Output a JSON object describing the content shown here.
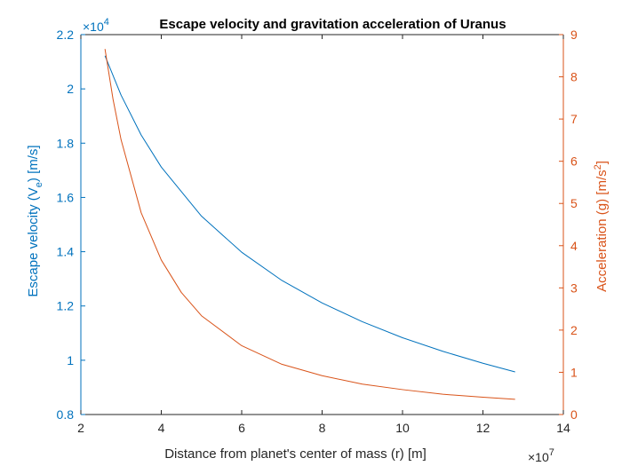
{
  "chart_data": {
    "type": "line",
    "title": "Escape velocity and gravitation acceleration of Uranus",
    "xlabel": "Distance from planet's center of mass (r) [m]",
    "x_multiplier": "×10",
    "x_multiplier_exp": "7",
    "xlim": [
      20000000.0,
      140000000.0
    ],
    "xticks": [
      20000000.0,
      40000000.0,
      60000000.0,
      80000000.0,
      100000000.0,
      120000000.0,
      140000000.0
    ],
    "xtick_labels": [
      "2",
      "4",
      "6",
      "8",
      "10",
      "12",
      "14"
    ],
    "left_axis": {
      "label_main": "Escape velocity (V",
      "label_sub": "e",
      "label_end": ") [m/s]",
      "color": "#0072BD",
      "multiplier": "×10",
      "multiplier_exp": "4",
      "ylim": [
        8000,
        22000
      ],
      "ticks": [
        8000,
        10000,
        12000,
        14000,
        16000,
        18000,
        20000,
        22000
      ],
      "tick_labels": [
        "0.8",
        "1",
        "1.2",
        "1.4",
        "1.6",
        "1.8",
        "2",
        "2.2"
      ]
    },
    "right_axis": {
      "label_main": "Acceleration (g) [m/s",
      "label_sup": "2",
      "label_end": "]",
      "color": "#D95319",
      "ylim": [
        0,
        9
      ],
      "ticks": [
        0,
        1,
        2,
        3,
        4,
        5,
        6,
        7,
        8,
        9
      ],
      "tick_labels": [
        "0",
        "1",
        "2",
        "3",
        "4",
        "5",
        "6",
        "7",
        "8",
        "9"
      ]
    },
    "series": [
      {
        "axis": "left",
        "color": "#0072BD",
        "x": [
          26000000.0,
          30000000.0,
          35000000.0,
          40000000.0,
          50000000.0,
          60000000.0,
          70000000.0,
          80000000.0,
          90000000.0,
          100000000.0,
          110000000.0,
          120000000.0,
          128000000.0
        ],
        "y": [
          21220,
          19770,
          18300,
          17120,
          15310,
          13980,
          12940,
          12110,
          11420,
          10830,
          10330,
          9890,
          9570
        ]
      },
      {
        "axis": "right",
        "color": "#D95319",
        "x": [
          26000000.0,
          28000000.0,
          30000000.0,
          35000000.0,
          40000000.0,
          45000000.0,
          50000000.0,
          60000000.0,
          70000000.0,
          80000000.0,
          90000000.0,
          100000000.0,
          110000000.0,
          120000000.0,
          128000000.0
        ],
        "y": [
          8.66,
          7.47,
          6.51,
          4.78,
          3.66,
          2.89,
          2.34,
          1.63,
          1.19,
          0.92,
          0.72,
          0.59,
          0.48,
          0.41,
          0.36
        ]
      }
    ]
  }
}
